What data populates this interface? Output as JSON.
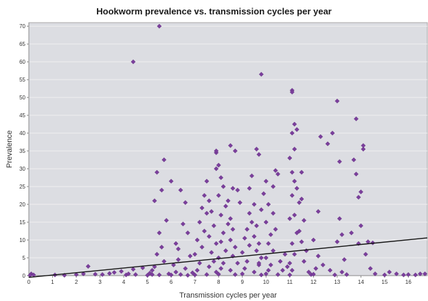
{
  "chart_data": {
    "type": "scatter",
    "title": "Hookworm prevalence vs. transmission cycles per year",
    "xlabel": "Transmission cycles per year",
    "ylabel": "Prevalence",
    "xlim": [
      0,
      16.8
    ],
    "ylim": [
      0,
      71
    ],
    "x_ticks": [
      0,
      1,
      2,
      3,
      4,
      5,
      6,
      7,
      8,
      9,
      10,
      11,
      12,
      13,
      14,
      15,
      16
    ],
    "y_ticks": [
      0,
      5,
      10,
      15,
      20,
      25,
      30,
      35,
      40,
      45,
      50,
      55,
      60,
      65,
      70
    ],
    "grid": "horizontal",
    "colors": {
      "plot_background": "#dcdde2",
      "gridline": "#f0f0f0",
      "marker": "#7b3f9c",
      "trendline": "#111111"
    },
    "trendline": {
      "x": [
        0,
        16.8
      ],
      "y": [
        -0.5,
        10.6
      ]
    },
    "series": [
      {
        "marker": "diamond",
        "points": [
          [
            0.1,
            0.5
          ],
          [
            0.2,
            0.2
          ],
          [
            0.05,
            0.1
          ],
          [
            1.1,
            0.2
          ],
          [
            1.5,
            0.1
          ],
          [
            2.0,
            0.3
          ],
          [
            2.3,
            0.5
          ],
          [
            2.5,
            2.6
          ],
          [
            2.8,
            0.4
          ],
          [
            3.1,
            0.3
          ],
          [
            3.4,
            0.6
          ],
          [
            3.6,
            0.9
          ],
          [
            3.9,
            1.2
          ],
          [
            4.1,
            0.2
          ],
          [
            4.2,
            0.5
          ],
          [
            4.4,
            1.8
          ],
          [
            4.5,
            0.3
          ],
          [
            4.8,
            2.2
          ],
          [
            5.0,
            0.1
          ],
          [
            5.1,
            0.7
          ],
          [
            5.2,
            1.5
          ],
          [
            4.4,
            60.0
          ],
          [
            5.5,
            70.0
          ],
          [
            5.4,
            29.0
          ],
          [
            5.7,
            32.5
          ],
          [
            5.6,
            24.0
          ],
          [
            5.3,
            21.0
          ],
          [
            5.5,
            12.0
          ],
          [
            5.6,
            8.0
          ],
          [
            5.4,
            6.0
          ],
          [
            5.8,
            15.5
          ],
          [
            5.7,
            4.0
          ],
          [
            5.3,
            2.5
          ],
          [
            5.9,
            0.5
          ],
          [
            5.5,
            0.2
          ],
          [
            5.2,
            0.3
          ],
          [
            6.0,
            0.2
          ],
          [
            6.2,
            1.0
          ],
          [
            6.1,
            3.0
          ],
          [
            6.3,
            4.5
          ],
          [
            6.2,
            9.0
          ],
          [
            6.0,
            26.5
          ],
          [
            6.4,
            24.0
          ],
          [
            6.6,
            20.5
          ],
          [
            6.5,
            14.5
          ],
          [
            6.7,
            12.0
          ],
          [
            6.3,
            7.5
          ],
          [
            6.8,
            5.5
          ],
          [
            6.6,
            2.0
          ],
          [
            6.9,
            0.8
          ],
          [
            6.4,
            0.3
          ],
          [
            6.7,
            0.1
          ],
          [
            7.0,
            0.2
          ],
          [
            7.1,
            1.5
          ],
          [
            7.2,
            3.5
          ],
          [
            7.0,
            6.0
          ],
          [
            7.3,
            8.0
          ],
          [
            7.1,
            10.0
          ],
          [
            7.4,
            12.5
          ],
          [
            7.2,
            15.0
          ],
          [
            7.5,
            17.5
          ],
          [
            7.3,
            19.0
          ],
          [
            7.4,
            22.5
          ],
          [
            7.5,
            26.5
          ],
          [
            7.6,
            21.0
          ],
          [
            7.7,
            18.0
          ],
          [
            7.8,
            14.0
          ],
          [
            7.6,
            11.0
          ],
          [
            7.9,
            9.0
          ],
          [
            7.7,
            6.5
          ],
          [
            7.8,
            4.0
          ],
          [
            7.6,
            2.5
          ],
          [
            7.9,
            1.0
          ],
          [
            7.5,
            0.3
          ],
          [
            8.0,
            0.4
          ],
          [
            8.1,
            2.0
          ],
          [
            8.2,
            3.5
          ],
          [
            8.0,
            5.0
          ],
          [
            8.3,
            7.0
          ],
          [
            8.1,
            9.5
          ],
          [
            8.2,
            12.0
          ],
          [
            8.4,
            14.5
          ],
          [
            8.1,
            17.0
          ],
          [
            8.3,
            19.5
          ],
          [
            8.0,
            22.5
          ],
          [
            8.2,
            25.0
          ],
          [
            8.1,
            27.5
          ],
          [
            7.9,
            30.0
          ],
          [
            7.9,
            34.5
          ],
          [
            7.9,
            35.0
          ],
          [
            8.0,
            31.0
          ],
          [
            8.4,
            21.0
          ],
          [
            8.5,
            16.0
          ],
          [
            8.6,
            13.0
          ],
          [
            8.5,
            10.0
          ],
          [
            8.7,
            8.0
          ],
          [
            8.6,
            5.5
          ],
          [
            8.8,
            3.5
          ],
          [
            8.5,
            1.5
          ],
          [
            8.7,
            0.3
          ],
          [
            8.6,
            24.5
          ],
          [
            8.5,
            36.5
          ],
          [
            8.7,
            35.0
          ],
          [
            8.8,
            24.0
          ],
          [
            8.9,
            20.5
          ],
          [
            9.0,
            0.5
          ],
          [
            9.1,
            2.0
          ],
          [
            9.2,
            4.0
          ],
          [
            9.0,
            6.5
          ],
          [
            9.3,
            8.5
          ],
          [
            9.1,
            10.5
          ],
          [
            9.2,
            13.0
          ],
          [
            9.4,
            15.0
          ],
          [
            9.3,
            17.5
          ],
          [
            9.5,
            20.0
          ],
          [
            9.6,
            14.0
          ],
          [
            9.5,
            11.0
          ],
          [
            9.7,
            9.0
          ],
          [
            9.6,
            7.0
          ],
          [
            9.8,
            5.0
          ],
          [
            9.7,
            3.0
          ],
          [
            9.5,
            1.0
          ],
          [
            9.8,
            0.2
          ],
          [
            9.6,
            35.5
          ],
          [
            9.7,
            34.0
          ],
          [
            9.3,
            24.5
          ],
          [
            9.4,
            28.0
          ],
          [
            9.8,
            18.5
          ],
          [
            9.9,
            23.0
          ],
          [
            9.8,
            56.5
          ],
          [
            9.7,
            3.5
          ],
          [
            10.0,
            0.5
          ],
          [
            10.1,
            1.5
          ],
          [
            10.2,
            3.0
          ],
          [
            10.0,
            5.0
          ],
          [
            10.3,
            7.0
          ],
          [
            10.1,
            9.0
          ],
          [
            10.2,
            11.5
          ],
          [
            10.0,
            15.0
          ],
          [
            10.4,
            13.0
          ],
          [
            10.3,
            17.5
          ],
          [
            10.1,
            20.0
          ],
          [
            10.0,
            26.5
          ],
          [
            10.3,
            25.0
          ],
          [
            10.5,
            28.5
          ],
          [
            10.4,
            29.5
          ],
          [
            10.6,
            4.0
          ],
          [
            10.7,
            1.5
          ],
          [
            10.5,
            0.3
          ],
          [
            10.8,
            6.0
          ],
          [
            10.9,
            2.5
          ],
          [
            11.0,
            0.2
          ],
          [
            11.1,
            1.5
          ],
          [
            11.0,
            3.5
          ],
          [
            11.2,
            6.0
          ],
          [
            11.1,
            9.0
          ],
          [
            11.3,
            12.0
          ],
          [
            11.0,
            16.0
          ],
          [
            11.2,
            17.0
          ],
          [
            11.1,
            22.5
          ],
          [
            11.3,
            24.5
          ],
          [
            11.2,
            26.5
          ],
          [
            11.1,
            29.0
          ],
          [
            11.0,
            33.0
          ],
          [
            11.2,
            35.5
          ],
          [
            11.1,
            40.0
          ],
          [
            11.3,
            41.0
          ],
          [
            11.2,
            42.5
          ],
          [
            11.1,
            52.0
          ],
          [
            11.1,
            51.5
          ],
          [
            11.4,
            20.5
          ],
          [
            11.5,
            21.5
          ],
          [
            11.6,
            15.5
          ],
          [
            11.5,
            9.5
          ],
          [
            11.7,
            7.0
          ],
          [
            11.6,
            4.0
          ],
          [
            11.8,
            1.0
          ],
          [
            11.5,
            29.0
          ],
          [
            11.4,
            12.5
          ],
          [
            11.9,
            0.3
          ],
          [
            12.0,
            0.4
          ],
          [
            12.1,
            2.0
          ],
          [
            12.2,
            5.5
          ],
          [
            12.0,
            10.0
          ],
          [
            12.2,
            18.0
          ],
          [
            12.3,
            39.0
          ],
          [
            12.4,
            3.0
          ],
          [
            12.6,
            37.0
          ],
          [
            12.7,
            1.5
          ],
          [
            12.9,
            0.2
          ],
          [
            12.8,
            40.0
          ],
          [
            13.0,
            49.0
          ],
          [
            13.1,
            32.0
          ],
          [
            13.1,
            16.0
          ],
          [
            13.2,
            11.5
          ],
          [
            13.0,
            9.5
          ],
          [
            13.3,
            4.5
          ],
          [
            13.2,
            1.0
          ],
          [
            13.4,
            0.3
          ],
          [
            13.7,
            32.5
          ],
          [
            13.8,
            44.0
          ],
          [
            13.9,
            22.0
          ],
          [
            13.8,
            28.5
          ],
          [
            14.0,
            23.5
          ],
          [
            13.6,
            12.0
          ],
          [
            13.9,
            9.0
          ],
          [
            14.1,
            35.5
          ],
          [
            14.1,
            36.5
          ],
          [
            14.0,
            14.0
          ],
          [
            14.2,
            6.0
          ],
          [
            14.3,
            9.5
          ],
          [
            14.5,
            9.2
          ],
          [
            14.4,
            2.0
          ],
          [
            14.6,
            0.5
          ],
          [
            15.0,
            0.2
          ],
          [
            15.2,
            1.0
          ],
          [
            15.5,
            0.5
          ],
          [
            15.8,
            0.2
          ],
          [
            16.0,
            0.3
          ],
          [
            16.5,
            0.5
          ],
          [
            16.7,
            0.5
          ],
          [
            16.3,
            0.2
          ]
        ]
      }
    ]
  }
}
